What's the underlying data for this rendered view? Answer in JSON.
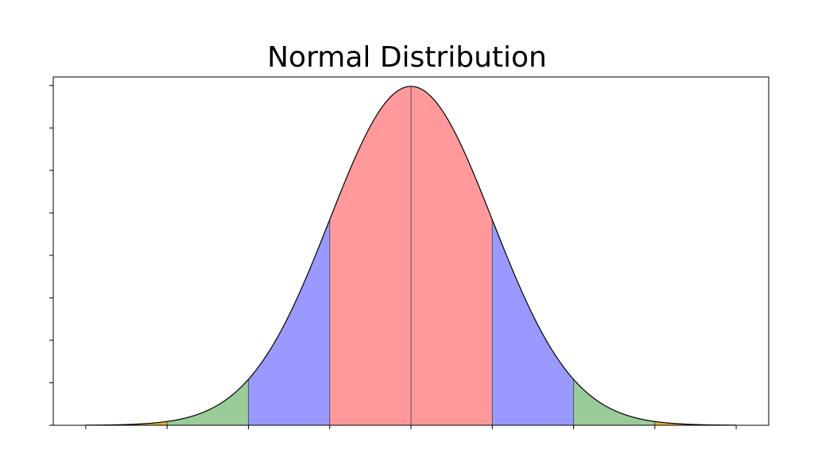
{
  "chart_data": {
    "type": "area",
    "title": "Normal Distribution",
    "xlabel": "",
    "ylabel": "",
    "xlim": [
      -4.4,
      4.4
    ],
    "ylim": [
      0,
      0.41
    ],
    "distribution": {
      "mean": 0,
      "std": 1
    },
    "x_ticks": [
      -4,
      -3,
      -2,
      -1,
      0,
      1,
      2,
      3,
      4
    ],
    "y_ticks": [
      0,
      0.05,
      0.1,
      0.15,
      0.2,
      0.25,
      0.3,
      0.35,
      0.4
    ],
    "tick_labels_shown": false,
    "grid": false,
    "bands": [
      {
        "from": -4,
        "to": -3,
        "color": "#e6b233"
      },
      {
        "from": -3,
        "to": -2,
        "color": "#99cc99"
      },
      {
        "from": -2,
        "to": -1,
        "color": "#9999ff"
      },
      {
        "from": -1,
        "to": 0,
        "color": "#ff999c"
      },
      {
        "from": 0,
        "to": 1,
        "color": "#ff999c"
      },
      {
        "from": 1,
        "to": 2,
        "color": "#9999ff"
      },
      {
        "from": 2,
        "to": 3,
        "color": "#99cc99"
      },
      {
        "from": 3,
        "to": 4,
        "color": "#e6b233"
      }
    ],
    "curve_color": "#000000"
  }
}
